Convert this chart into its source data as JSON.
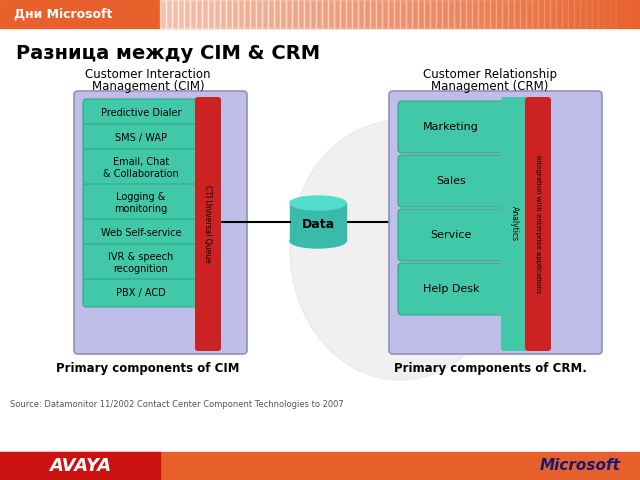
{
  "title": "Разница между CIM & CRM",
  "header_text": "Дни Microsoft",
  "header_bg": "#E8612C",
  "header_bg2": "#f5c8a8",
  "cim_title_line1": "Customer Interaction",
  "cim_title_line2": "Management (CIM)",
  "crm_title_line1": "Customer Relationship",
  "crm_title_line2": "Management (CRM)",
  "cim_boxes": [
    "Predictive Dialer",
    "SMS / WAP",
    "Email, Chat\n& Collaboration",
    "Logging &\nmonitoring",
    "Web Self-service",
    "IVR & speech\nrecognition",
    "PBX / ACD"
  ],
  "crm_boxes": [
    "Marketing",
    "Sales",
    "Service",
    "Help Desk"
  ],
  "cim_sidebar": "CTI Universal Queue",
  "crm_sidebar1": "Analytics",
  "crm_sidebar2": "Integration with enterprise applications",
  "data_label": "Data",
  "cim_caption": "Primary components of CIM",
  "crm_caption": "Primary components of CRM.",
  "source_text": "Source: Datamonitor 11/2002 Contact Center Component Technologies to 2007",
  "box_fill": "#40C8A8",
  "sidebar_red": "#CC2222",
  "group_fill": "#BEBEE8",
  "group_edge": "#9090BB",
  "data_fill": "#40C8A8",
  "avaya_bg": "#CC1111",
  "footer_bg": "#E8612C"
}
